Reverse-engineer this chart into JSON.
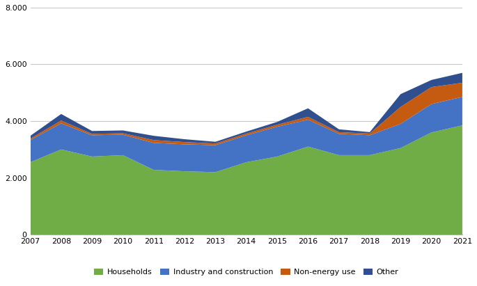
{
  "years": [
    2007,
    2008,
    2009,
    2010,
    2011,
    2012,
    2013,
    2014,
    2015,
    2016,
    2017,
    2018,
    2019,
    2020,
    2021
  ],
  "households": [
    2550,
    3000,
    2750,
    2800,
    2280,
    2230,
    2200,
    2550,
    2750,
    3100,
    2800,
    2800,
    3050,
    3600,
    3850
  ],
  "industry_construction": [
    780,
    920,
    750,
    720,
    950,
    950,
    950,
    950,
    1050,
    950,
    750,
    700,
    850,
    1000,
    1000
  ],
  "non_energy_use": [
    50,
    100,
    50,
    50,
    100,
    80,
    60,
    60,
    70,
    100,
    60,
    60,
    600,
    600,
    500
  ],
  "other": [
    100,
    230,
    100,
    100,
    150,
    100,
    60,
    70,
    100,
    300,
    100,
    50,
    450,
    250,
    350
  ],
  "colors": {
    "households": "#70AD47",
    "industry_construction": "#4472C4",
    "non_energy_use": "#C55A11",
    "other": "#2F4F8F"
  },
  "ylim": [
    0,
    8000
  ],
  "yticks": [
    0,
    2000,
    4000,
    6000,
    8000
  ],
  "legend_labels": [
    "Households",
    "Industry and construction",
    "Non-energy use",
    "Other"
  ],
  "background_color": "#ffffff",
  "grid_color": "#c8c8c8"
}
